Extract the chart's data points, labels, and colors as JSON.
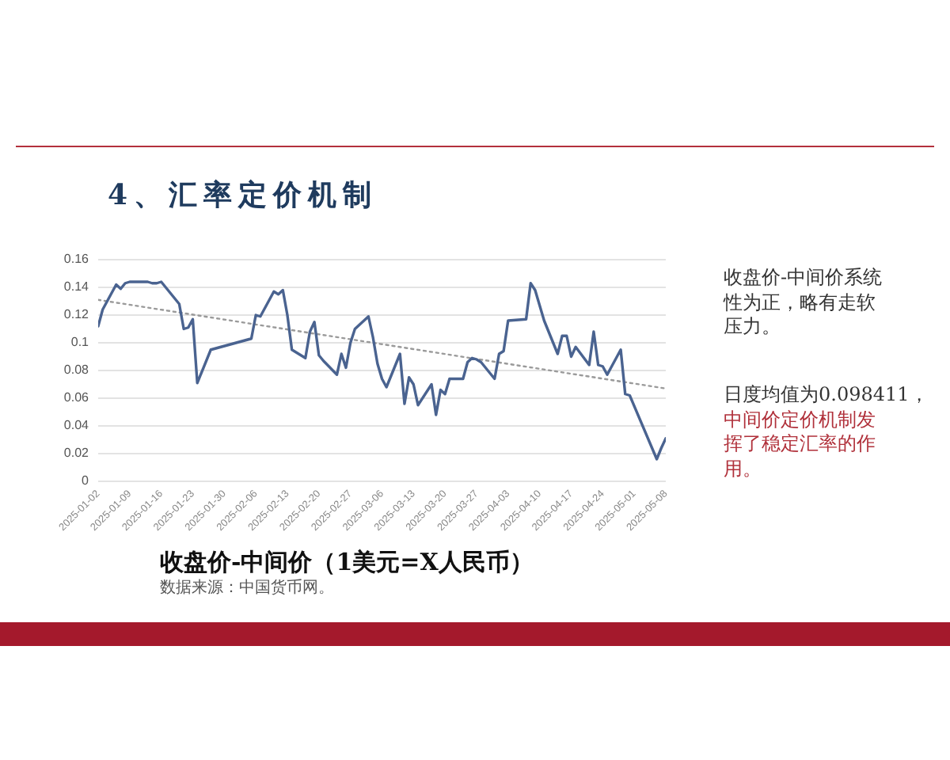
{
  "chart_data": {
    "type": "line",
    "title": "4、汇率定价机制",
    "subtitle": "收盘价-中间价（1美元=X人民币）",
    "annotations": [
      "数据来源：中国货币网。",
      "收盘价-中间价系统性为正，略有走软压力。",
      "日度均值为0.098411，",
      "中间价定价机制发挥了稳定汇率的作用。"
    ],
    "x": [
      "2025-01-02",
      "2025-01-03",
      "2025-01-06",
      "2025-01-07",
      "2025-01-08",
      "2025-01-09",
      "2025-01-10",
      "2025-01-13",
      "2025-01-14",
      "2025-01-15",
      "2025-01-16",
      "2025-01-17",
      "2025-01-20",
      "2025-01-21",
      "2025-01-22",
      "2025-01-23",
      "2025-01-24",
      "2025-01-27",
      "2025-02-05",
      "2025-02-06",
      "2025-02-07",
      "2025-02-10",
      "2025-02-11",
      "2025-02-12",
      "2025-02-13",
      "2025-02-14",
      "2025-02-17",
      "2025-02-18",
      "2025-02-19",
      "2025-02-20",
      "2025-02-21",
      "2025-02-24",
      "2025-02-25",
      "2025-02-26",
      "2025-02-27",
      "2025-02-28",
      "2025-03-03",
      "2025-03-04",
      "2025-03-05",
      "2025-03-06",
      "2025-03-07",
      "2025-03-10",
      "2025-03-11",
      "2025-03-12",
      "2025-03-13",
      "2025-03-14",
      "2025-03-17",
      "2025-03-18",
      "2025-03-19",
      "2025-03-20",
      "2025-03-21",
      "2025-03-24",
      "2025-03-25",
      "2025-03-26",
      "2025-03-27",
      "2025-03-28",
      "2025-03-31",
      "2025-04-01",
      "2025-04-02",
      "2025-04-03",
      "2025-04-07",
      "2025-04-08",
      "2025-04-09",
      "2025-04-10",
      "2025-04-11",
      "2025-04-14",
      "2025-04-15",
      "2025-04-16",
      "2025-04-17",
      "2025-04-18",
      "2025-04-21",
      "2025-04-22",
      "2025-04-23",
      "2025-04-24",
      "2025-04-25",
      "2025-04-28",
      "2025-04-29",
      "2025-04-30",
      "2025-05-06",
      "2025-05-07",
      "2025-05-08"
    ],
    "series": [
      {
        "color": "#4a6390",
        "line_style": "solid",
        "values": [
          0.112,
          0.124,
          0.142,
          0.139,
          0.143,
          0.144,
          0.144,
          0.144,
          0.143,
          0.143,
          0.144,
          0.14,
          0.128,
          0.11,
          0.111,
          0.117,
          0.071,
          0.095,
          0.103,
          0.12,
          0.119,
          0.137,
          0.135,
          0.138,
          0.12,
          0.095,
          0.089,
          0.108,
          0.115,
          0.091,
          0.087,
          0.077,
          0.092,
          0.082,
          0.1,
          0.11,
          0.119,
          0.104,
          0.085,
          0.074,
          0.068,
          0.092,
          0.056,
          0.075,
          0.07,
          0.055,
          0.07,
          0.048,
          0.066,
          0.063,
          0.074,
          0.074,
          0.086,
          0.089,
          0.088,
          0.086,
          0.074,
          0.092,
          0.094,
          0.116,
          0.117,
          0.143,
          0.138,
          0.127,
          0.116,
          0.092,
          0.105,
          0.105,
          0.09,
          0.097,
          0.084,
          0.108,
          0.084,
          0.083,
          0.077,
          0.095,
          0.063,
          0.062,
          0.016,
          0.024,
          0.031
        ]
      },
      {
        "color": "#9a9a9a",
        "line_style": "dotted",
        "x": [
          "2025-01-02",
          "2025-05-08"
        ],
        "values": [
          0.131,
          0.067
        ]
      }
    ],
    "xlim": [
      "2025-01-02",
      "2025-05-08"
    ],
    "xticks": [
      "2025-01-02",
      "2025-01-09",
      "2025-01-16",
      "2025-01-23",
      "2025-01-30",
      "2025-02-06",
      "2025-02-13",
      "2025-02-20",
      "2025-02-27",
      "2025-03-06",
      "2025-03-13",
      "2025-03-20",
      "2025-03-27",
      "2025-04-03",
      "2025-04-10",
      "2025-04-17",
      "2025-04-24",
      "2025-05-01",
      "2025-05-08"
    ],
    "ylim": [
      0,
      0.16
    ],
    "yticks": [
      0,
      0.02,
      0.04,
      0.06,
      0.08,
      0.1,
      0.12,
      0.14,
      0.16
    ],
    "grid": "y",
    "legend": false,
    "marker": "none"
  }
}
